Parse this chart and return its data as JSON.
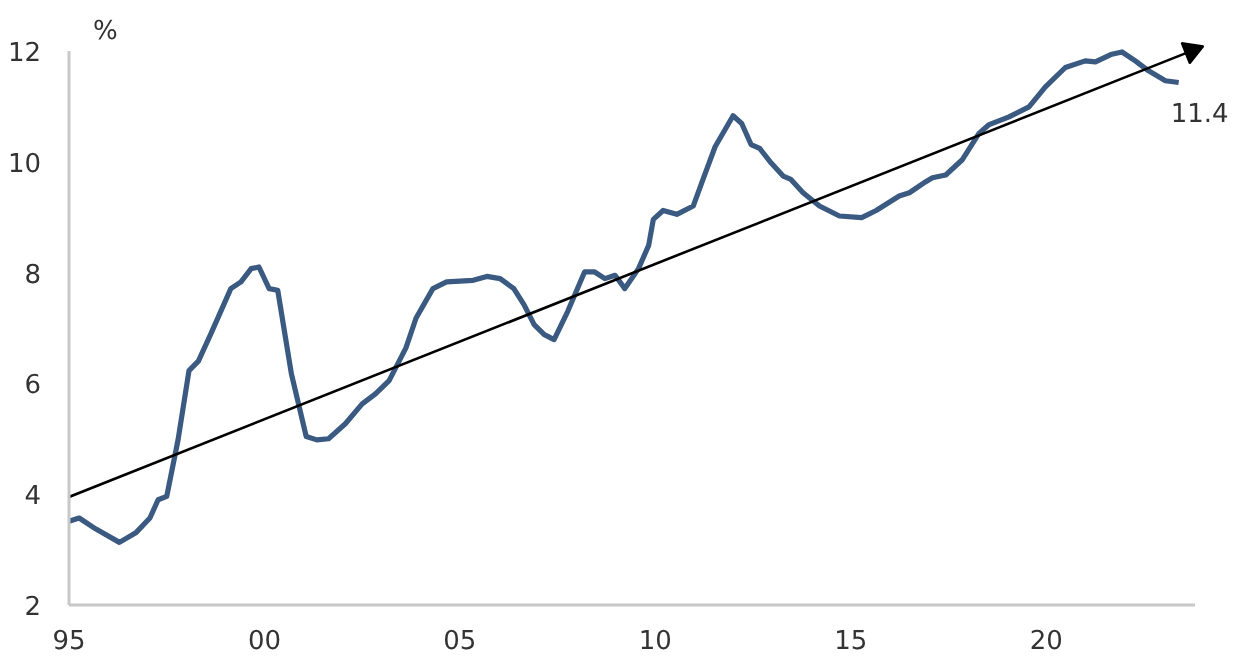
{
  "chart_data": {
    "type": "line",
    "ylabel": "%",
    "xlim": [
      1995,
      2023.8
    ],
    "ylim": [
      2,
      12
    ],
    "xticks": [
      {
        "value": 1995,
        "label": "95"
      },
      {
        "value": 2000,
        "label": "00"
      },
      {
        "value": 2005,
        "label": "05"
      },
      {
        "value": 2010,
        "label": "10"
      },
      {
        "value": 2015,
        "label": "15"
      },
      {
        "value": 2020,
        "label": "20"
      }
    ],
    "yticks": [
      2,
      4,
      6,
      8,
      10,
      12
    ],
    "grid": false,
    "line_style": "solid",
    "series": [
      {
        "color": "#3a5a82",
        "x": [
          1995.0,
          1995.26,
          1995.69,
          1996.29,
          1996.72,
          1997.07,
          1997.28,
          1997.5,
          1997.79,
          1998.07,
          1998.31,
          1998.62,
          1999.14,
          1999.4,
          1999.66,
          1999.86,
          2000.12,
          2000.34,
          2000.69,
          2001.07,
          2001.34,
          2001.64,
          2002.07,
          2002.5,
          2002.84,
          2003.19,
          2003.62,
          2003.88,
          2004.31,
          2004.66,
          2005.34,
          2005.69,
          2006.03,
          2006.38,
          2006.64,
          2006.9,
          2007.16,
          2007.41,
          2007.76,
          2008.19,
          2008.45,
          2008.71,
          2008.97,
          2009.22,
          2009.57,
          2009.83,
          2009.95,
          2010.2,
          2010.55,
          2010.97,
          2011.22,
          2011.53,
          2011.99,
          2012.21,
          2012.45,
          2012.67,
          2012.96,
          2013.27,
          2013.47,
          2013.78,
          2014.2,
          2014.71,
          2015.28,
          2015.65,
          2016.24,
          2016.5,
          2016.92,
          2017.09,
          2017.43,
          2017.86,
          2018.28,
          2018.54,
          2019.05,
          2019.56,
          2019.98,
          2020.49,
          2021.0,
          2021.26,
          2021.68,
          2021.94,
          2022.28,
          2022.62,
          2023.05,
          2023.39
        ],
        "values": [
          3.51,
          3.57,
          3.37,
          3.13,
          3.31,
          3.57,
          3.9,
          3.96,
          4.98,
          6.23,
          6.4,
          6.88,
          7.71,
          7.83,
          8.07,
          8.1,
          7.71,
          7.68,
          6.17,
          5.04,
          4.98,
          5.0,
          5.27,
          5.63,
          5.81,
          6.05,
          6.64,
          7.18,
          7.71,
          7.83,
          7.86,
          7.93,
          7.89,
          7.71,
          7.42,
          7.06,
          6.88,
          6.79,
          7.3,
          8.01,
          8.01,
          7.89,
          7.95,
          7.71,
          8.07,
          8.49,
          8.96,
          9.12,
          9.05,
          9.2,
          9.68,
          10.27,
          10.83,
          10.69,
          10.31,
          10.24,
          9.98,
          9.74,
          9.68,
          9.44,
          9.2,
          9.02,
          8.99,
          9.12,
          9.38,
          9.44,
          9.64,
          9.71,
          9.76,
          10.04,
          10.51,
          10.67,
          10.81,
          10.99,
          11.35,
          11.7,
          11.82,
          11.8,
          11.94,
          11.98,
          11.82,
          11.64,
          11.46,
          11.43
        ]
      },
      {
        "color": "#000000",
        "marker": "triangle",
        "x": [
          1995.0,
          2023.72
        ],
        "values": [
          3.95,
          12.0
        ]
      }
    ],
    "annotations": [
      {
        "text": "11.4",
        "x": 2023.39,
        "y": 11.43
      }
    ]
  }
}
